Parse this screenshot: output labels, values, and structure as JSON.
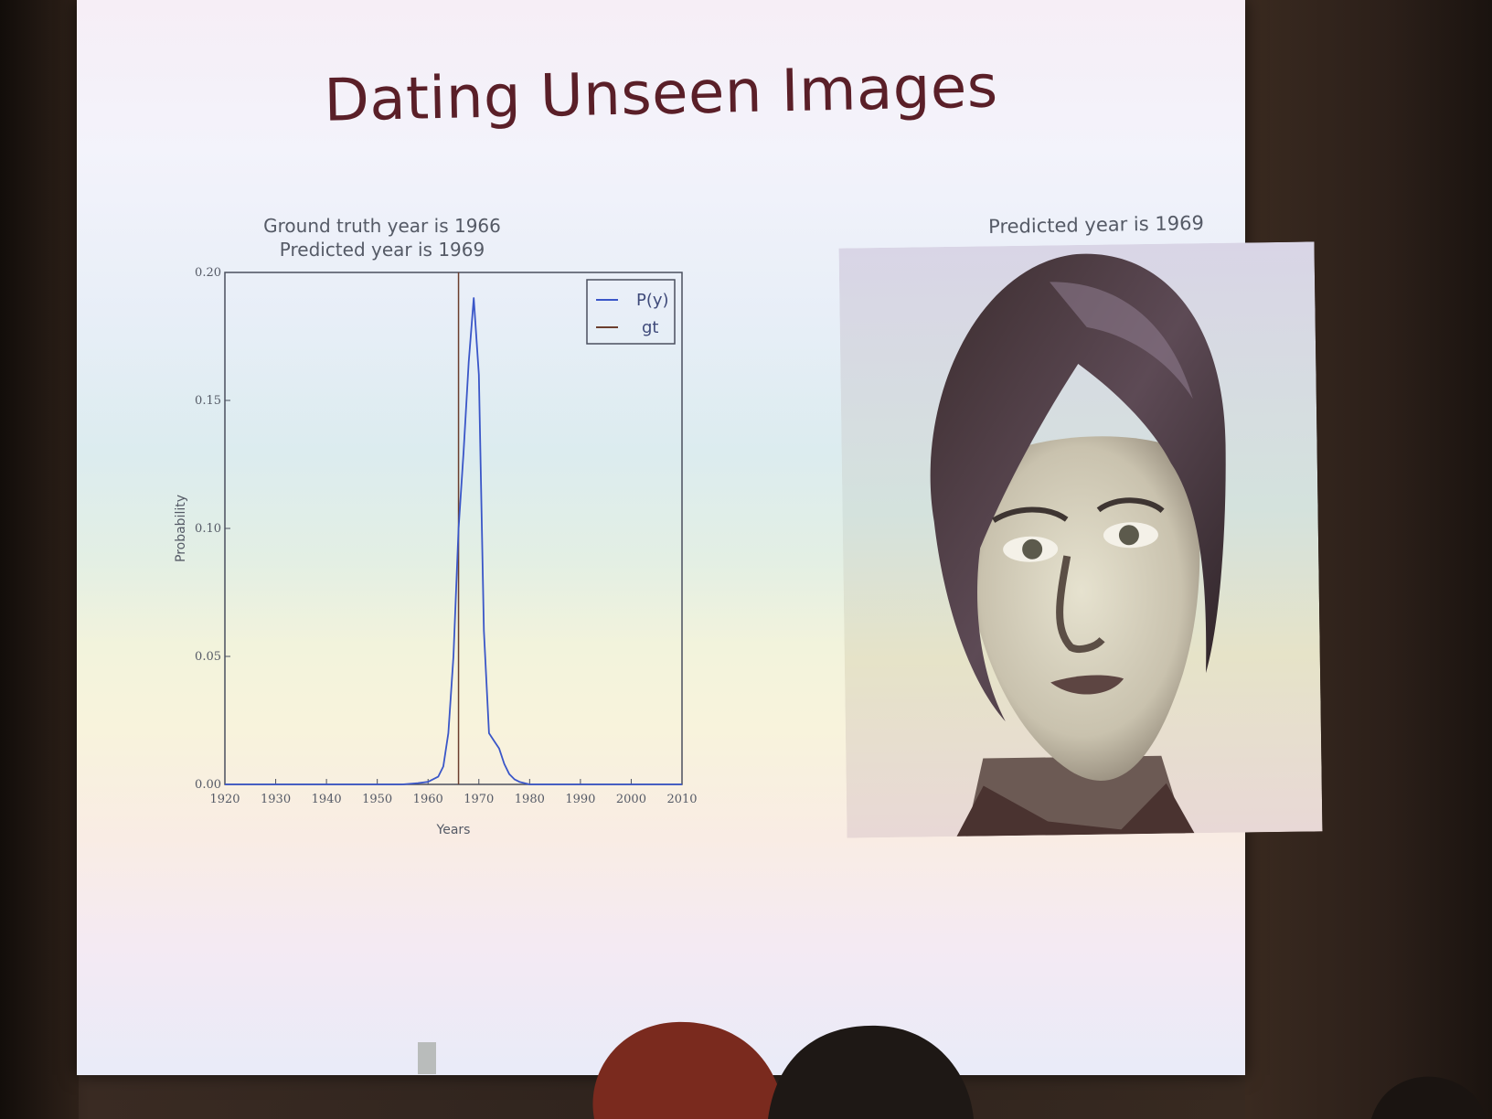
{
  "slide": {
    "title": "Dating Unseen Images"
  },
  "photo": {
    "title": "Predicted year is 1969"
  },
  "chart_data": {
    "type": "line",
    "title": "Ground truth year is 1966",
    "subtitle": "Predicted year is 1969",
    "xlabel": "Years",
    "ylabel": "Probability",
    "xlim": [
      1920,
      2010
    ],
    "ylim": [
      0.0,
      0.2
    ],
    "x_ticks": [
      1920,
      1930,
      1940,
      1950,
      1960,
      1970,
      1980,
      1990,
      2000,
      2010
    ],
    "y_ticks": [
      "0.00",
      "0.05",
      "0.10",
      "0.15",
      "0.20"
    ],
    "legend": {
      "placement": "top-right",
      "entries": [
        "P(y)",
        "gt"
      ]
    },
    "series": [
      {
        "name": "P(y)",
        "color": "#3a56c8",
        "x": [
          1920,
          1955,
          1958,
          1960,
          1962,
          1963,
          1964,
          1965,
          1966,
          1967,
          1968,
          1969,
          1970,
          1971,
          1972,
          1973,
          1974,
          1975,
          1976,
          1977,
          1978,
          1980,
          1985,
          1990,
          2000,
          2010
        ],
        "y": [
          0.0,
          0.0,
          0.0005,
          0.001,
          0.003,
          0.007,
          0.02,
          0.05,
          0.1,
          0.13,
          0.165,
          0.19,
          0.16,
          0.06,
          0.02,
          0.017,
          0.014,
          0.008,
          0.004,
          0.002,
          0.001,
          0.0,
          0.0,
          0.0,
          0.0,
          0.0
        ]
      }
    ],
    "gt": {
      "name": "gt",
      "x": 1966,
      "color": "#6b3e2e"
    }
  }
}
